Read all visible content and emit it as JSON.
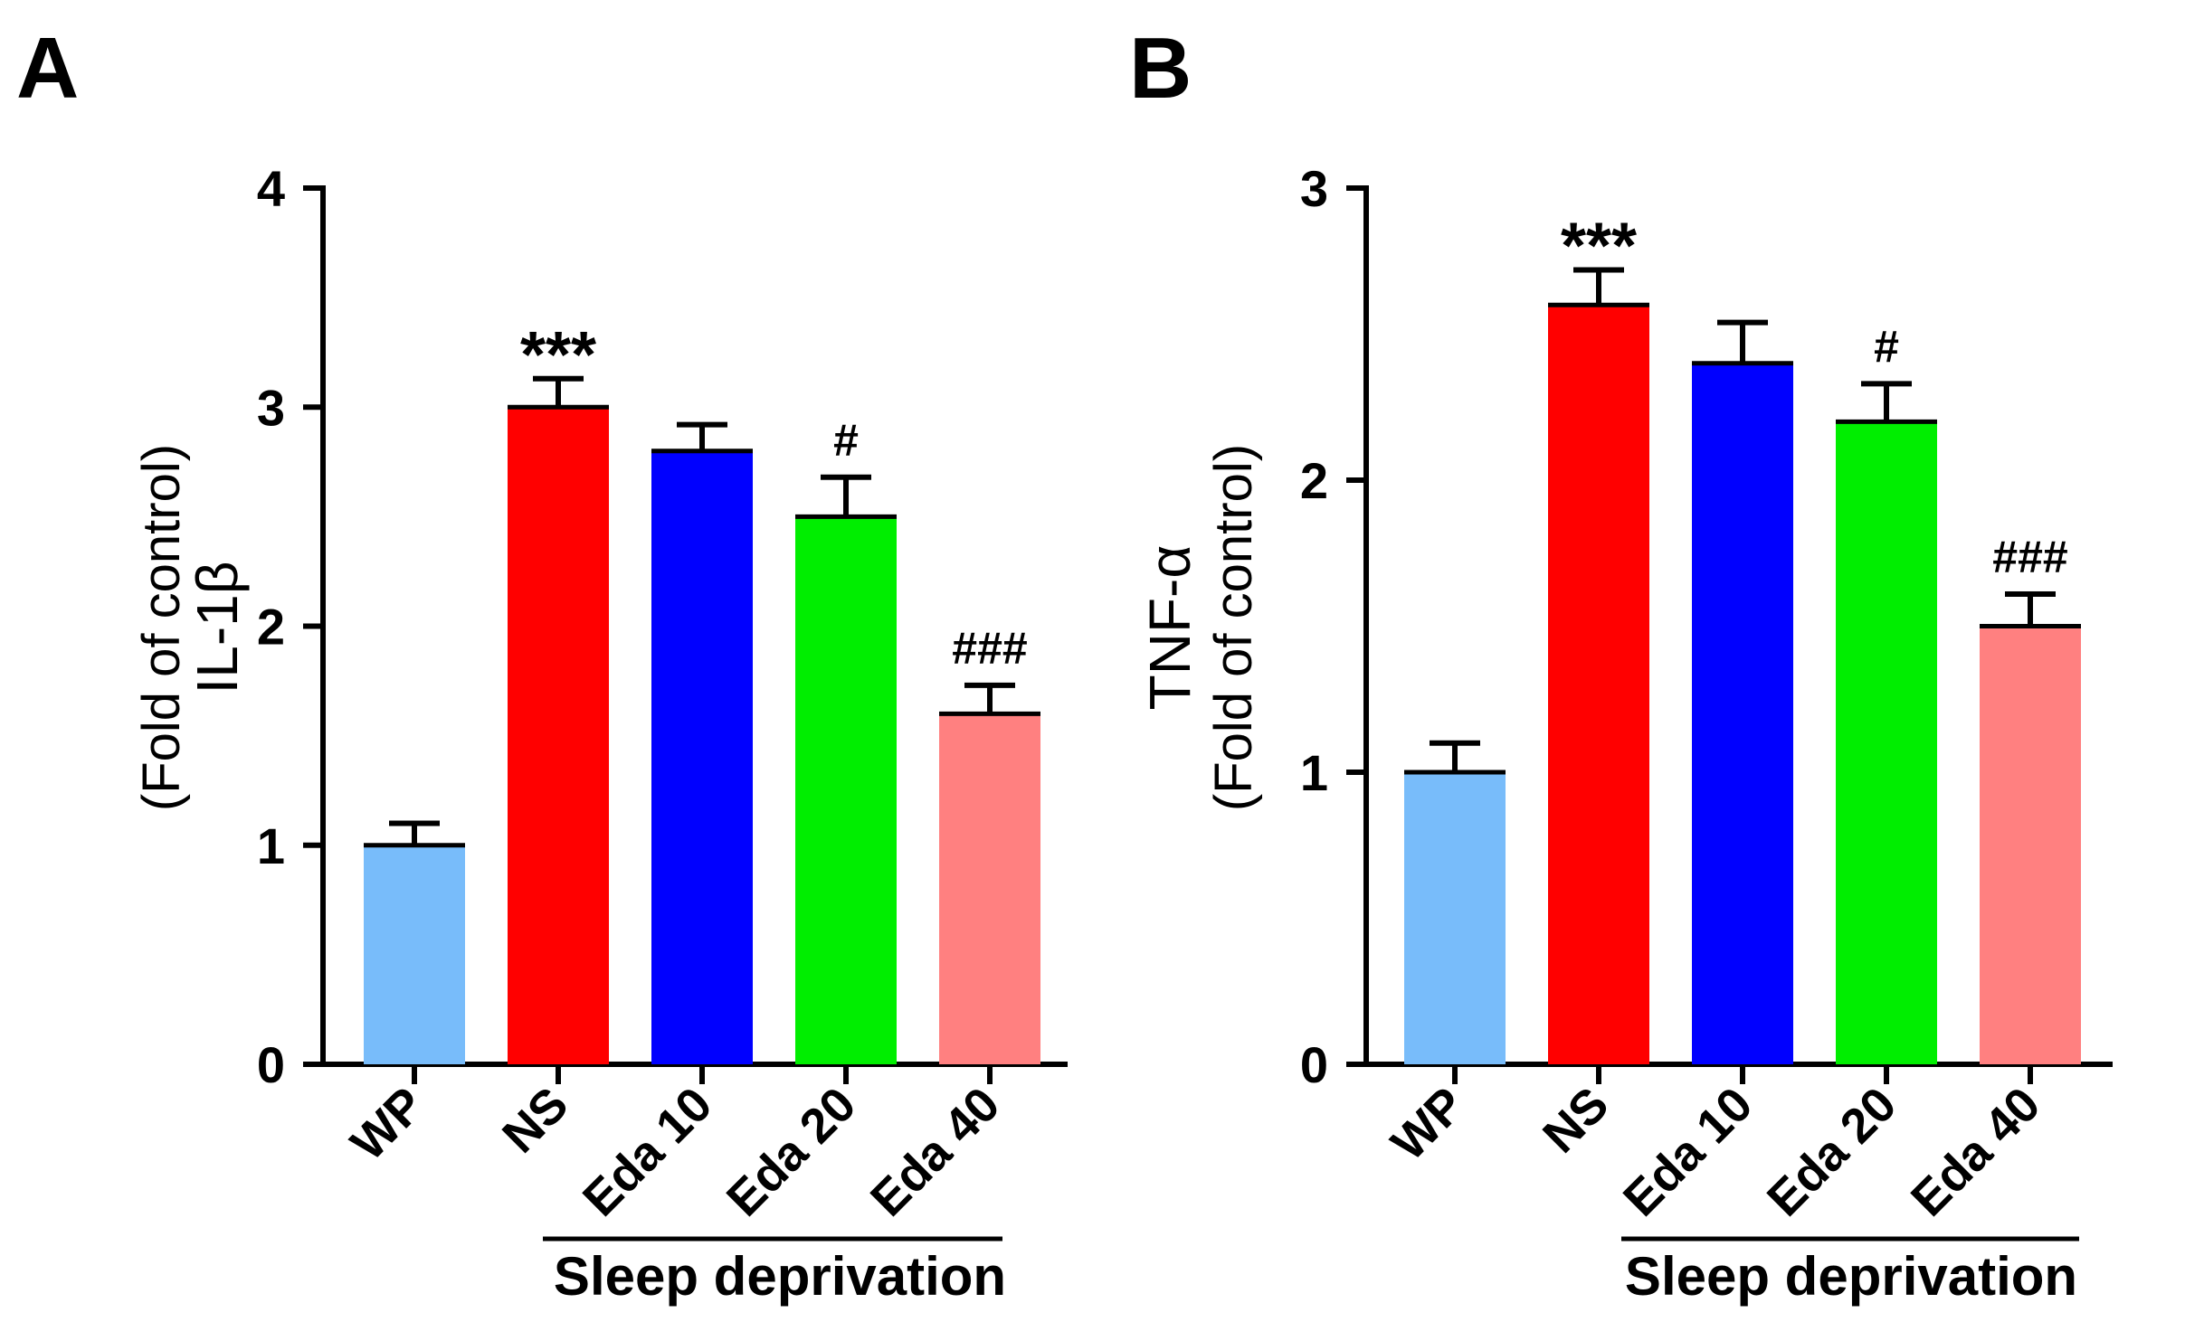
{
  "panels": [
    {
      "letter": "A"
    },
    {
      "letter": "B"
    }
  ],
  "chart_data": [
    {
      "type": "bar",
      "panel": "A",
      "categories": [
        "WP",
        "NS",
        "Eda 10",
        "Eda 20",
        "Eda 40"
      ],
      "values": [
        1.0,
        3.0,
        2.8,
        2.5,
        1.6
      ],
      "errors": [
        0.1,
        0.13,
        0.12,
        0.18,
        0.13
      ],
      "colors": [
        "#78BCFA",
        "#FF0000",
        "#0000FF",
        "#00EE00",
        "#FF8080"
      ],
      "annotations": [
        "",
        "***",
        "",
        "#",
        "###"
      ],
      "ylabel": "IL-1β",
      "ylabel_sub": "(Fold of control)",
      "ylim": [
        0,
        4
      ],
      "yticks": [
        0,
        1,
        2,
        3,
        4
      ],
      "group_label": "Sleep deprivation"
    },
    {
      "type": "bar",
      "panel": "B",
      "categories": [
        "WP",
        "NS",
        "Eda 10",
        "Eda 20",
        "Eda 40"
      ],
      "values": [
        1.0,
        2.6,
        2.4,
        2.2,
        1.5
      ],
      "errors": [
        0.1,
        0.12,
        0.14,
        0.13,
        0.11
      ],
      "colors": [
        "#78BCFA",
        "#FF0000",
        "#0000FF",
        "#00EE00",
        "#FF8080"
      ],
      "annotations": [
        "",
        "***",
        "",
        "#",
        "###"
      ],
      "ylabel": "TNF-α",
      "ylabel_sub": "(Fold of control)",
      "ylim": [
        0,
        3
      ],
      "yticks": [
        0,
        1,
        2,
        3
      ],
      "group_label": "Sleep deprivation"
    }
  ]
}
